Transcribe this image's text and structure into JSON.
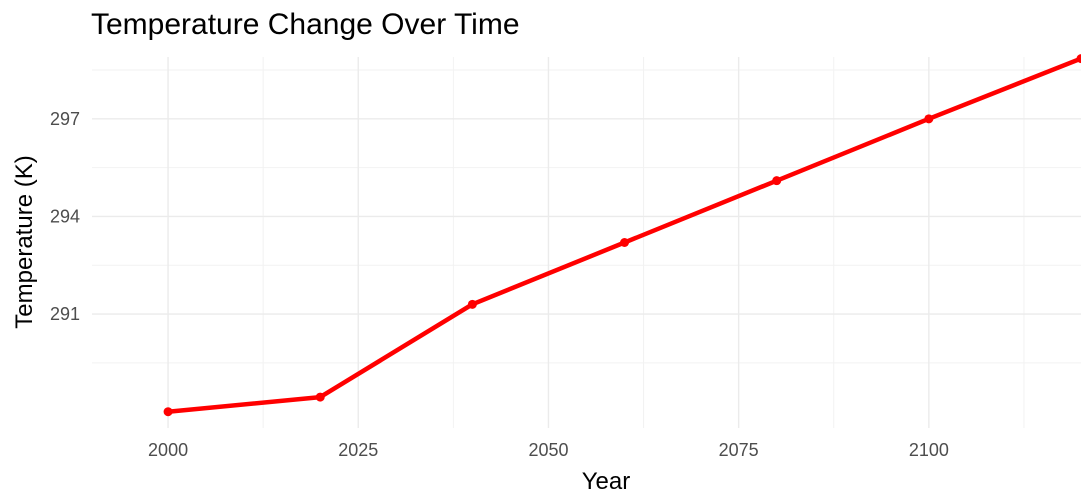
{
  "chart_data": {
    "type": "line",
    "title": "Temperature Change Over Time",
    "xlabel": "Year",
    "ylabel": "Temperature (K)",
    "x": [
      2000,
      2020,
      2040,
      2060,
      2080,
      2100,
      2120
    ],
    "series": [
      {
        "values": [
          288.0,
          288.45,
          291.3,
          293.2,
          295.1,
          297.0,
          298.85
        ],
        "color": "#ff0000"
      }
    ],
    "xlim": [
      1990,
      2120
    ],
    "ylim": [
      287.5,
      298.9
    ],
    "xticks": [
      2000,
      2025,
      2050,
      2075,
      2100
    ],
    "xtick_labels": [
      "2000",
      "2025",
      "2050",
      "2075",
      "2100"
    ],
    "yticks": [
      291,
      294,
      297
    ],
    "ytick_labels": [
      "291",
      "294",
      "297"
    ],
    "grid": true,
    "legend": "none"
  }
}
